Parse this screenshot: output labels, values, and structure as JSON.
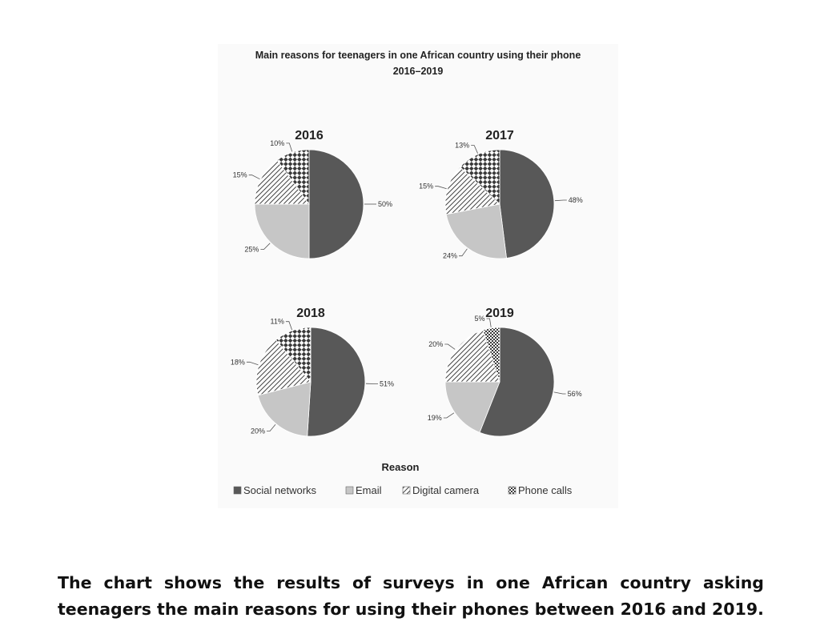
{
  "chart_data": {
    "type": "pie",
    "title_line1": "Main reasons for teenagers in one African country using their phone",
    "title_line2": "2016–2019",
    "legend_title": "Reason",
    "legend_position": "bottom",
    "categories": [
      "Social networks",
      "Email",
      "Digital camera",
      "Phone calls"
    ],
    "patterns": [
      "solid-dark",
      "solid-light",
      "diagonal-hatch",
      "checker"
    ],
    "colors": {
      "Social networks": "#585858",
      "Email": "#c6c6c6",
      "Digital camera": "#ffffff",
      "Phone calls": "#ffffff"
    },
    "pies": [
      {
        "year": "2016",
        "values": [
          50,
          25,
          15,
          10
        ],
        "labels": [
          "50%",
          "25%",
          "15%",
          "10%"
        ]
      },
      {
        "year": "2017",
        "values": [
          48,
          24,
          15,
          13
        ],
        "labels": [
          "48%",
          "24%",
          "15%",
          "13%"
        ]
      },
      {
        "year": "2018",
        "values": [
          51,
          20,
          18,
          11
        ],
        "labels": [
          "51%",
          "20%",
          "18%",
          "11%"
        ]
      },
      {
        "year": "2019",
        "values": [
          56,
          19,
          20,
          5
        ],
        "labels": [
          "56%",
          "19%",
          "20%",
          "5%"
        ]
      }
    ]
  },
  "caption": "The chart shows the results of surveys in one African country asking teenagers the main reasons for using their phones between 2016 and 2019."
}
